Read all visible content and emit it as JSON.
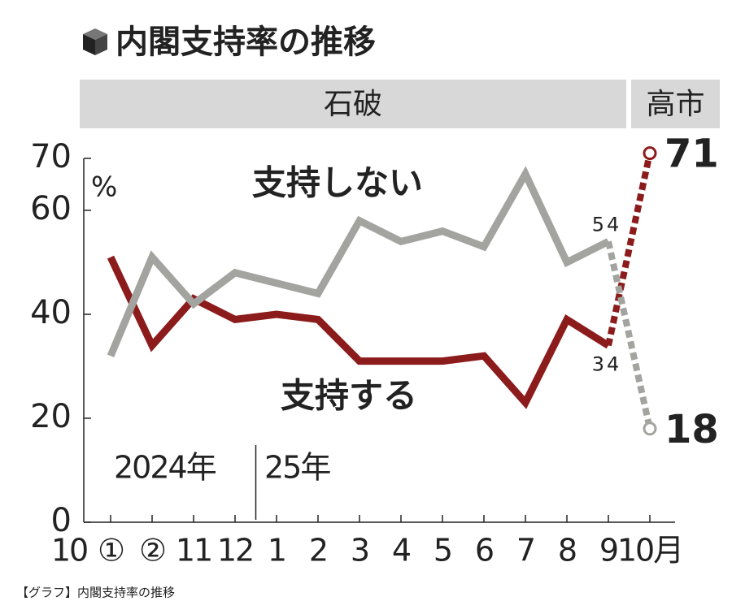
{
  "chart_data": {
    "type": "line",
    "title": "内閣支持率の推移",
    "unit": "%",
    "caption": "【グラフ】内閣支持率の推移",
    "categories": [
      "10",
      "①",
      "②",
      "11",
      "12",
      "1",
      "2",
      "3",
      "4",
      "5",
      "6",
      "7",
      "8",
      "9",
      "10月"
    ],
    "series": [
      {
        "name": "支持する",
        "color": "#8c1c1c",
        "values": [
          null,
          51,
          34,
          43,
          39,
          40,
          39,
          31,
          31,
          31,
          32,
          23,
          39,
          34,
          71
        ],
        "label_indices": [
          13,
          14
        ],
        "label_colors": [
          "#d0344a",
          "#8c1c1c"
        ]
      },
      {
        "name": "支持しない",
        "color": "#a3a3a0",
        "values": [
          null,
          32,
          51,
          42,
          48,
          46,
          44,
          58,
          54,
          56,
          53,
          67,
          50,
          54,
          18
        ],
        "label_indices": [
          13,
          14
        ],
        "label_colors": [
          "#1f52c4",
          "#3c3c38"
        ]
      }
    ],
    "eras": [
      {
        "label": "石破",
        "from": 1,
        "to": 13
      },
      {
        "label": "高市",
        "from": 14,
        "to": 14
      }
    ],
    "years": [
      {
        "label": "2024年",
        "from": 0
      },
      {
        "label": "25年",
        "from": 5
      }
    ],
    "ylim": [
      0,
      70
    ],
    "yticks": [
      0,
      20,
      40,
      60,
      70
    ]
  }
}
